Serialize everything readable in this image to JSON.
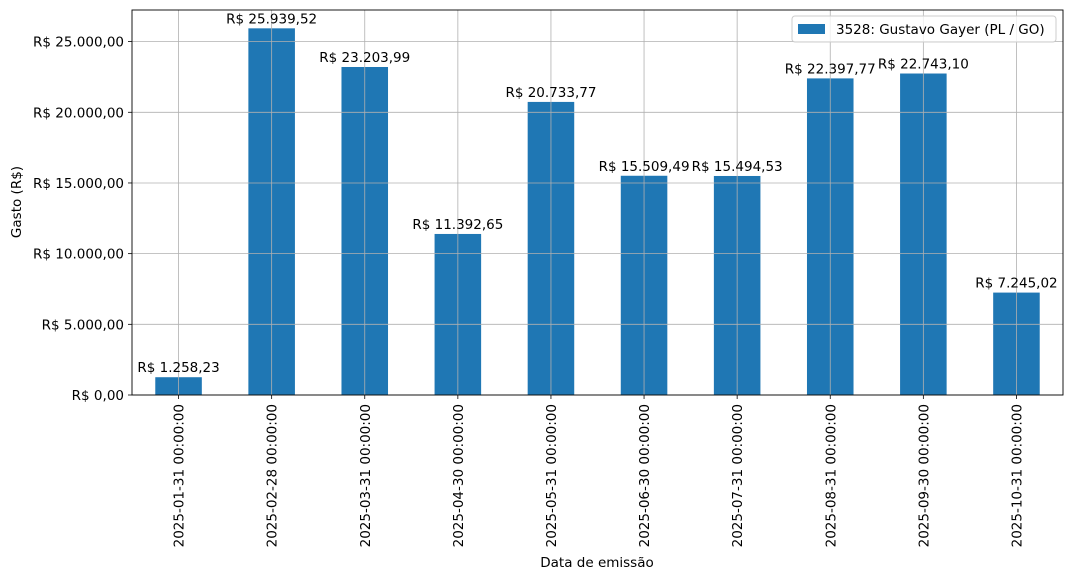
{
  "chart_data": {
    "type": "bar",
    "title": "",
    "xlabel": "Data de emissão",
    "ylabel": "Gasto (R$)",
    "categories": [
      "2025-01-31 00:00:00",
      "2025-02-28 00:00:00",
      "2025-03-31 00:00:00",
      "2025-04-30 00:00:00",
      "2025-05-31 00:00:00",
      "2025-06-30 00:00:00",
      "2025-07-31 00:00:00",
      "2025-08-31 00:00:00",
      "2025-09-30 00:00:00",
      "2025-10-31 00:00:00"
    ],
    "series": [
      {
        "name": "3528: Gustavo Gayer (PL / GO)",
        "color": "#1f77b4",
        "values": [
          1258.23,
          25939.52,
          23203.99,
          11392.65,
          20733.77,
          15509.49,
          15494.53,
          22397.77,
          22743.1,
          7245.02
        ]
      }
    ],
    "data_labels": [
      "R$ 1.258,23",
      "R$ 25.939,52",
      "R$ 23.203,99",
      "R$ 11.392,65",
      "R$ 20.733,77",
      "R$ 15.509,49",
      "R$ 15.494,53",
      "R$ 22.397,77",
      "R$ 22.743,10",
      "R$ 7.245,02"
    ],
    "yticks": [
      0,
      5000,
      10000,
      15000,
      20000,
      25000
    ],
    "ytick_labels": [
      "R$ 0,00",
      "R$ 5.000,00",
      "R$ 10.000,00",
      "R$ 15.000,00",
      "R$ 20.000,00",
      "R$ 25.000,00"
    ],
    "ylim": [
      0,
      27236.5
    ],
    "grid": true,
    "legend_position": "top-right"
  }
}
